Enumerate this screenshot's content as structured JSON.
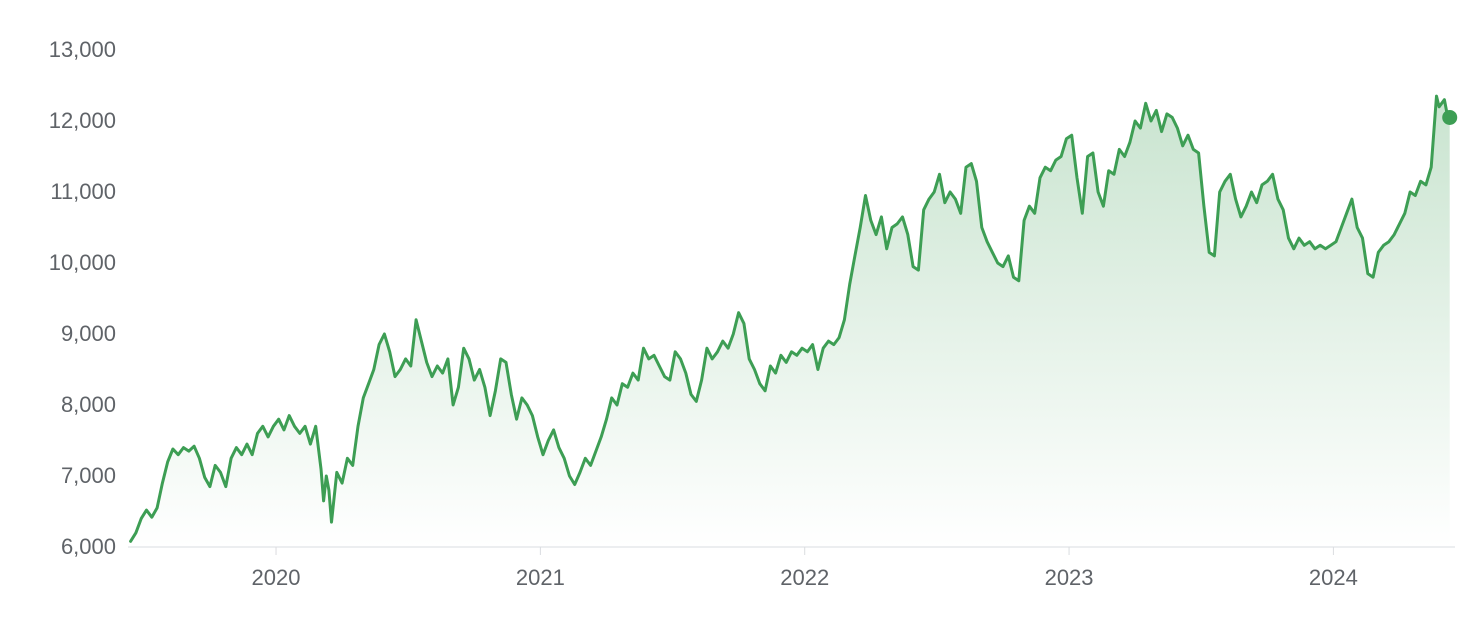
{
  "chart_data": {
    "type": "area",
    "title": "",
    "xlabel": "",
    "ylabel": "",
    "legend": "none",
    "grid": "off",
    "line_color": "#3d9e54",
    "fill_top_color": "rgba(61,158,84,0.28)",
    "fill_bottom_color": "rgba(61,158,84,0.0)",
    "label_color": "#5f6368",
    "axis_color": "#dadce0",
    "marker_radius": 7.5,
    "line_width": 3,
    "ylim": [
      6000,
      13000
    ],
    "xlim": [
      2019.44,
      2024.46
    ],
    "y_ticks": [
      {
        "value": 6000,
        "label": "6,000"
      },
      {
        "value": 7000,
        "label": "7,000"
      },
      {
        "value": 8000,
        "label": "8,000"
      },
      {
        "value": 9000,
        "label": "9,000"
      },
      {
        "value": 10000,
        "label": "10,000"
      },
      {
        "value": 11000,
        "label": "11,000"
      },
      {
        "value": 12000,
        "label": "12,000"
      },
      {
        "value": 13000,
        "label": "13,000"
      }
    ],
    "x_ticks": [
      {
        "value": 2020,
        "label": "2020"
      },
      {
        "value": 2021,
        "label": "2021"
      },
      {
        "value": 2022,
        "label": "2022"
      },
      {
        "value": 2023,
        "label": "2023"
      },
      {
        "value": 2024,
        "label": "2024"
      }
    ],
    "last_value": 12050,
    "points": [
      [
        2019.45,
        6080
      ],
      [
        2019.47,
        6200
      ],
      [
        2019.49,
        6400
      ],
      [
        2019.51,
        6520
      ],
      [
        2019.53,
        6420
      ],
      [
        2019.55,
        6550
      ],
      [
        2019.57,
        6900
      ],
      [
        2019.59,
        7200
      ],
      [
        2019.61,
        7380
      ],
      [
        2019.63,
        7300
      ],
      [
        2019.65,
        7400
      ],
      [
        2019.67,
        7350
      ],
      [
        2019.69,
        7420
      ],
      [
        2019.71,
        7250
      ],
      [
        2019.73,
        6980
      ],
      [
        2019.75,
        6850
      ],
      [
        2019.77,
        7150
      ],
      [
        2019.79,
        7050
      ],
      [
        2019.81,
        6850
      ],
      [
        2019.83,
        7250
      ],
      [
        2019.85,
        7400
      ],
      [
        2019.87,
        7300
      ],
      [
        2019.89,
        7450
      ],
      [
        2019.91,
        7300
      ],
      [
        2019.93,
        7600
      ],
      [
        2019.95,
        7700
      ],
      [
        2019.97,
        7550
      ],
      [
        2019.99,
        7700
      ],
      [
        2020.01,
        7800
      ],
      [
        2020.03,
        7650
      ],
      [
        2020.05,
        7850
      ],
      [
        2020.07,
        7700
      ],
      [
        2020.09,
        7600
      ],
      [
        2020.11,
        7700
      ],
      [
        2020.13,
        7450
      ],
      [
        2020.15,
        7700
      ],
      [
        2020.17,
        7100
      ],
      [
        2020.18,
        6650
      ],
      [
        2020.19,
        7000
      ],
      [
        2020.2,
        6800
      ],
      [
        2020.21,
        6350
      ],
      [
        2020.23,
        7050
      ],
      [
        2020.25,
        6900
      ],
      [
        2020.27,
        7250
      ],
      [
        2020.29,
        7150
      ],
      [
        2020.31,
        7700
      ],
      [
        2020.33,
        8100
      ],
      [
        2020.35,
        8300
      ],
      [
        2020.37,
        8500
      ],
      [
        2020.39,
        8850
      ],
      [
        2020.41,
        9000
      ],
      [
        2020.43,
        8750
      ],
      [
        2020.45,
        8400
      ],
      [
        2020.47,
        8500
      ],
      [
        2020.49,
        8650
      ],
      [
        2020.51,
        8550
      ],
      [
        2020.53,
        9200
      ],
      [
        2020.55,
        8900
      ],
      [
        2020.57,
        8600
      ],
      [
        2020.59,
        8400
      ],
      [
        2020.61,
        8550
      ],
      [
        2020.63,
        8450
      ],
      [
        2020.65,
        8650
      ],
      [
        2020.67,
        8000
      ],
      [
        2020.69,
        8250
      ],
      [
        2020.71,
        8800
      ],
      [
        2020.73,
        8650
      ],
      [
        2020.75,
        8350
      ],
      [
        2020.77,
        8500
      ],
      [
        2020.79,
        8250
      ],
      [
        2020.81,
        7850
      ],
      [
        2020.83,
        8200
      ],
      [
        2020.85,
        8650
      ],
      [
        2020.87,
        8600
      ],
      [
        2020.89,
        8150
      ],
      [
        2020.91,
        7800
      ],
      [
        2020.93,
        8100
      ],
      [
        2020.95,
        8000
      ],
      [
        2020.97,
        7850
      ],
      [
        2020.99,
        7550
      ],
      [
        2021.01,
        7300
      ],
      [
        2021.03,
        7500
      ],
      [
        2021.05,
        7650
      ],
      [
        2021.07,
        7400
      ],
      [
        2021.09,
        7250
      ],
      [
        2021.11,
        7000
      ],
      [
        2021.13,
        6880
      ],
      [
        2021.15,
        7050
      ],
      [
        2021.17,
        7250
      ],
      [
        2021.19,
        7150
      ],
      [
        2021.21,
        7350
      ],
      [
        2021.23,
        7550
      ],
      [
        2021.25,
        7800
      ],
      [
        2021.27,
        8100
      ],
      [
        2021.29,
        8000
      ],
      [
        2021.31,
        8300
      ],
      [
        2021.33,
        8250
      ],
      [
        2021.35,
        8450
      ],
      [
        2021.37,
        8350
      ],
      [
        2021.39,
        8800
      ],
      [
        2021.41,
        8650
      ],
      [
        2021.43,
        8700
      ],
      [
        2021.45,
        8550
      ],
      [
        2021.47,
        8400
      ],
      [
        2021.49,
        8350
      ],
      [
        2021.51,
        8750
      ],
      [
        2021.53,
        8650
      ],
      [
        2021.55,
        8450
      ],
      [
        2021.57,
        8150
      ],
      [
        2021.59,
        8050
      ],
      [
        2021.61,
        8350
      ],
      [
        2021.63,
        8800
      ],
      [
        2021.65,
        8650
      ],
      [
        2021.67,
        8750
      ],
      [
        2021.69,
        8900
      ],
      [
        2021.71,
        8800
      ],
      [
        2021.73,
        9000
      ],
      [
        2021.75,
        9300
      ],
      [
        2021.77,
        9150
      ],
      [
        2021.79,
        8650
      ],
      [
        2021.81,
        8500
      ],
      [
        2021.83,
        8300
      ],
      [
        2021.85,
        8200
      ],
      [
        2021.87,
        8550
      ],
      [
        2021.89,
        8450
      ],
      [
        2021.91,
        8700
      ],
      [
        2021.93,
        8600
      ],
      [
        2021.95,
        8750
      ],
      [
        2021.97,
        8700
      ],
      [
        2021.99,
        8800
      ],
      [
        2022.01,
        8750
      ],
      [
        2022.03,
        8850
      ],
      [
        2022.05,
        8500
      ],
      [
        2022.07,
        8800
      ],
      [
        2022.09,
        8900
      ],
      [
        2022.11,
        8850
      ],
      [
        2022.13,
        8950
      ],
      [
        2022.15,
        9200
      ],
      [
        2022.17,
        9700
      ],
      [
        2022.19,
        10100
      ],
      [
        2022.21,
        10500
      ],
      [
        2022.23,
        10950
      ],
      [
        2022.25,
        10600
      ],
      [
        2022.27,
        10400
      ],
      [
        2022.29,
        10650
      ],
      [
        2022.31,
        10200
      ],
      [
        2022.33,
        10500
      ],
      [
        2022.35,
        10550
      ],
      [
        2022.37,
        10650
      ],
      [
        2022.39,
        10400
      ],
      [
        2022.41,
        9950
      ],
      [
        2022.43,
        9900
      ],
      [
        2022.45,
        10750
      ],
      [
        2022.47,
        10900
      ],
      [
        2022.49,
        11000
      ],
      [
        2022.51,
        11250
      ],
      [
        2022.53,
        10850
      ],
      [
        2022.55,
        11000
      ],
      [
        2022.57,
        10900
      ],
      [
        2022.59,
        10700
      ],
      [
        2022.61,
        11350
      ],
      [
        2022.63,
        11400
      ],
      [
        2022.65,
        11150
      ],
      [
        2022.67,
        10500
      ],
      [
        2022.69,
        10300
      ],
      [
        2022.71,
        10150
      ],
      [
        2022.73,
        10000
      ],
      [
        2022.75,
        9950
      ],
      [
        2022.77,
        10100
      ],
      [
        2022.79,
        9800
      ],
      [
        2022.81,
        9750
      ],
      [
        2022.83,
        10600
      ],
      [
        2022.85,
        10800
      ],
      [
        2022.87,
        10700
      ],
      [
        2022.89,
        11200
      ],
      [
        2022.91,
        11350
      ],
      [
        2022.93,
        11300
      ],
      [
        2022.95,
        11450
      ],
      [
        2022.97,
        11500
      ],
      [
        2022.99,
        11750
      ],
      [
        2023.01,
        11800
      ],
      [
        2023.03,
        11200
      ],
      [
        2023.05,
        10700
      ],
      [
        2023.07,
        11500
      ],
      [
        2023.09,
        11550
      ],
      [
        2023.11,
        11000
      ],
      [
        2023.13,
        10800
      ],
      [
        2023.15,
        11300
      ],
      [
        2023.17,
        11250
      ],
      [
        2023.19,
        11600
      ],
      [
        2023.21,
        11500
      ],
      [
        2023.23,
        11700
      ],
      [
        2023.25,
        12000
      ],
      [
        2023.27,
        11900
      ],
      [
        2023.29,
        12250
      ],
      [
        2023.31,
        12000
      ],
      [
        2023.33,
        12150
      ],
      [
        2023.35,
        11850
      ],
      [
        2023.37,
        12100
      ],
      [
        2023.39,
        12050
      ],
      [
        2023.41,
        11900
      ],
      [
        2023.43,
        11650
      ],
      [
        2023.45,
        11800
      ],
      [
        2023.47,
        11600
      ],
      [
        2023.49,
        11550
      ],
      [
        2023.51,
        10800
      ],
      [
        2023.53,
        10150
      ],
      [
        2023.55,
        10100
      ],
      [
        2023.57,
        11000
      ],
      [
        2023.59,
        11150
      ],
      [
        2023.61,
        11250
      ],
      [
        2023.63,
        10900
      ],
      [
        2023.65,
        10650
      ],
      [
        2023.67,
        10800
      ],
      [
        2023.69,
        11000
      ],
      [
        2023.71,
        10850
      ],
      [
        2023.73,
        11100
      ],
      [
        2023.75,
        11150
      ],
      [
        2023.77,
        11250
      ],
      [
        2023.79,
        10900
      ],
      [
        2023.81,
        10750
      ],
      [
        2023.83,
        10350
      ],
      [
        2023.85,
        10200
      ],
      [
        2023.87,
        10350
      ],
      [
        2023.89,
        10250
      ],
      [
        2023.91,
        10300
      ],
      [
        2023.93,
        10200
      ],
      [
        2023.95,
        10250
      ],
      [
        2023.97,
        10200
      ],
      [
        2023.99,
        10250
      ],
      [
        2024.01,
        10300
      ],
      [
        2024.03,
        10500
      ],
      [
        2024.05,
        10700
      ],
      [
        2024.07,
        10900
      ],
      [
        2024.09,
        10500
      ],
      [
        2024.11,
        10350
      ],
      [
        2024.13,
        9850
      ],
      [
        2024.15,
        9800
      ],
      [
        2024.17,
        10150
      ],
      [
        2024.19,
        10250
      ],
      [
        2024.21,
        10300
      ],
      [
        2024.23,
        10400
      ],
      [
        2024.25,
        10550
      ],
      [
        2024.27,
        10700
      ],
      [
        2024.29,
        11000
      ],
      [
        2024.31,
        10950
      ],
      [
        2024.33,
        11150
      ],
      [
        2024.35,
        11100
      ],
      [
        2024.37,
        11350
      ],
      [
        2024.39,
        12350
      ],
      [
        2024.4,
        12200
      ],
      [
        2024.42,
        12300
      ],
      [
        2024.43,
        12100
      ],
      [
        2024.44,
        12050
      ]
    ]
  }
}
